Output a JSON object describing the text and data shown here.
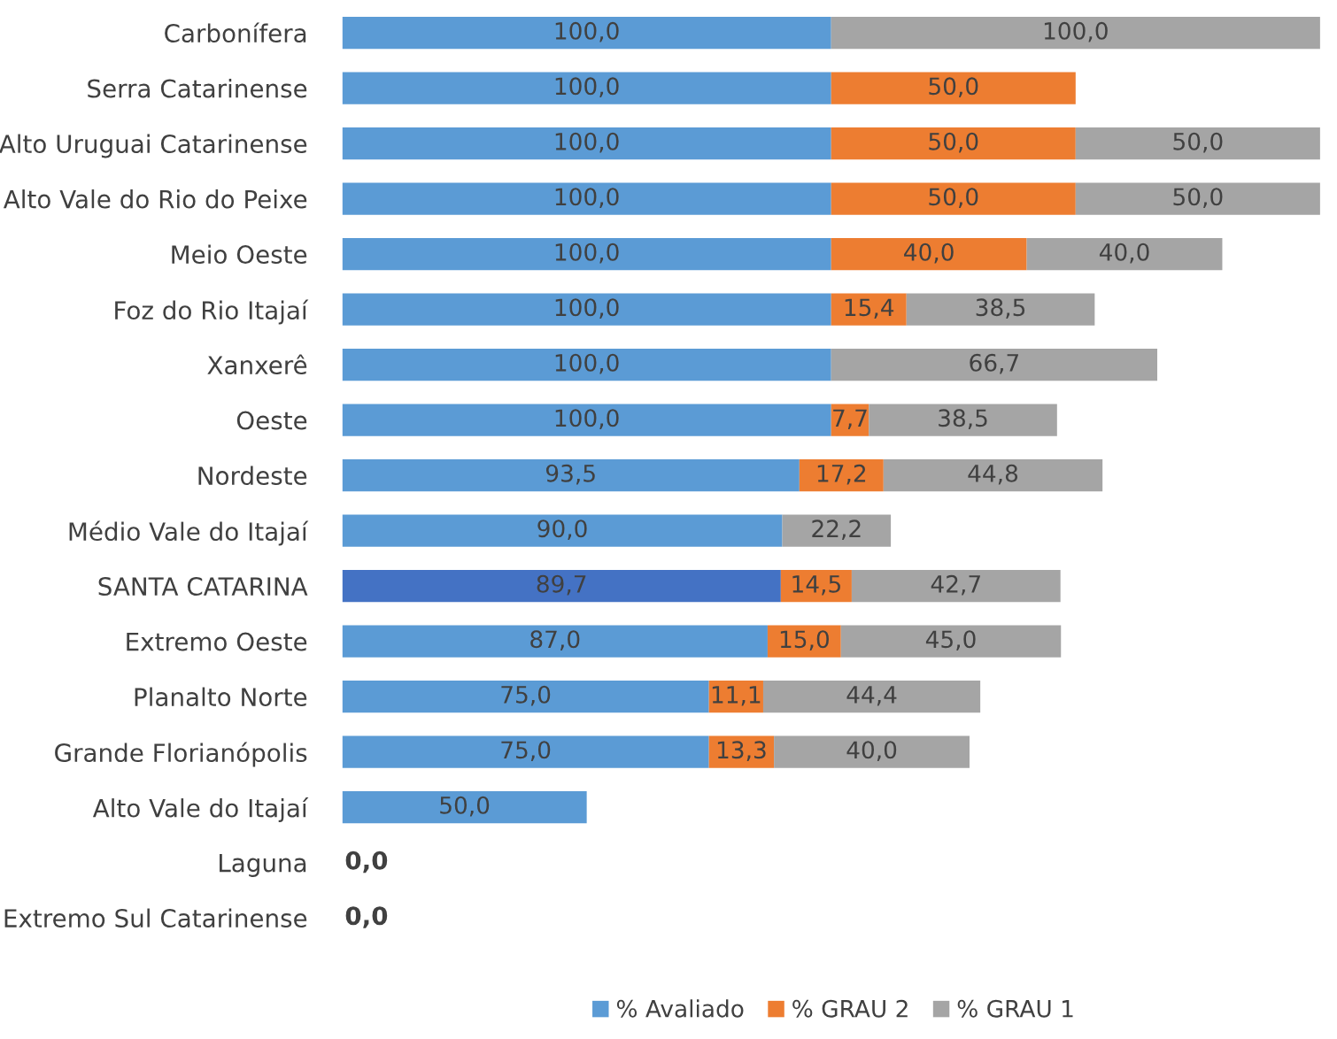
{
  "chart_data": {
    "type": "bar",
    "orientation": "horizontal",
    "stacked": true,
    "legend": "bottom",
    "categories": [
      "Carbonífera",
      "Serra Catarinense",
      "Alto Uruguai Catarinense",
      "Alto Vale do Rio do Peixe",
      "Meio Oeste",
      "Foz do Rio Itajaí",
      "Xanxerê",
      "Oeste",
      "Nordeste",
      "Médio Vale do Itajaí",
      "SANTA CATARINA",
      "Extremo Oeste",
      "Planalto Norte",
      "Grande Florianópolis",
      "Alto Vale do Itajaí",
      "Laguna",
      "Extremo Sul Catarinense"
    ],
    "series": [
      {
        "name": "% Avaliado",
        "color": "#5b9bd5",
        "colors": [
          "#5b9bd5",
          "#5b9bd5",
          "#5b9bd5",
          "#5b9bd5",
          "#5b9bd5",
          "#5b9bd5",
          "#5b9bd5",
          "#5b9bd5",
          "#5b9bd5",
          "#5b9bd5",
          "#4472c4",
          "#5b9bd5",
          "#5b9bd5",
          "#5b9bd5",
          "#5b9bd5",
          "#5b9bd5",
          "#5b9bd5"
        ],
        "values": [
          100,
          100,
          100,
          100,
          100,
          100,
          100,
          100,
          93.5,
          90,
          89.7,
          87,
          75,
          75,
          50,
          0,
          0
        ],
        "value_labels": [
          "100,0",
          "100,0",
          "100,0",
          "100,0",
          "100,0",
          "100,0",
          "100,0",
          "100,0",
          "93,5",
          "90,0",
          "89,7",
          "87,0",
          "75,0",
          "75,0",
          "50,0",
          "0,0",
          "0,0"
        ]
      },
      {
        "name": "% GRAU 2",
        "color": "#ed7d31",
        "values": [
          0,
          50,
          50,
          50,
          40,
          15.4,
          0,
          7.7,
          17.2,
          0,
          14.5,
          15,
          11.1,
          13.3,
          0,
          0,
          0
        ],
        "value_labels": [
          null,
          "50,0",
          "50,0",
          "50,0",
          "40,0",
          "15,4",
          null,
          "7,7",
          "17,2",
          null,
          "14,5",
          "15,0",
          "11,1",
          "13,3",
          null,
          null,
          null
        ]
      },
      {
        "name": "% GRAU 1",
        "color": "#a5a5a5",
        "values": [
          100,
          0,
          50,
          50,
          40,
          38.5,
          66.7,
          38.5,
          44.8,
          22.2,
          42.7,
          45,
          44.4,
          40,
          0,
          0,
          0
        ],
        "value_labels": [
          "100,0",
          null,
          "50,0",
          "50,0",
          "40,0",
          "38,5",
          "66,7",
          "38,5",
          "44,8",
          "22,2",
          "42,7",
          "45,0",
          "44,4",
          "40,0",
          null,
          null,
          null
        ]
      }
    ]
  }
}
